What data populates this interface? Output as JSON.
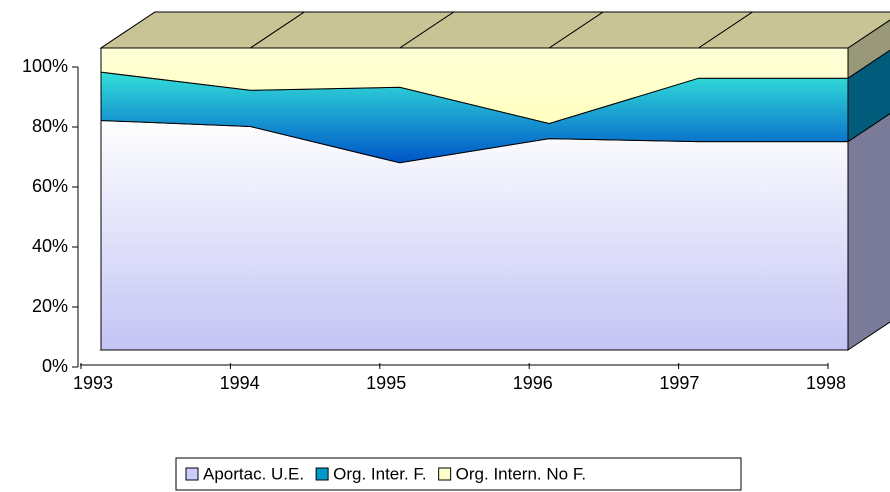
{
  "chart_data": {
    "type": "area3d",
    "stacked": "percent",
    "categories": [
      "1993",
      "1994",
      "1995",
      "1996",
      "1997",
      "1998"
    ],
    "series": [
      {
        "name": "Aportac. U.E.",
        "color": "#ccccff",
        "values": [
          76,
          74,
          62,
          70,
          69,
          69
        ]
      },
      {
        "name": "Org. Inter. F.",
        "color": "#0099cc",
        "values": [
          16,
          12,
          25,
          5,
          21,
          21
        ]
      },
      {
        "name": "Org. Intern. No F.",
        "color": "#ffffcc",
        "values": [
          8,
          14,
          13,
          25,
          10,
          10
        ]
      }
    ],
    "ylim": [
      0,
      100
    ],
    "yticks": [
      {
        "value": 0,
        "label": "0%"
      },
      {
        "value": 20,
        "label": "20%"
      },
      {
        "value": 40,
        "label": "40%"
      },
      {
        "value": 60,
        "label": "60%"
      },
      {
        "value": 80,
        "label": "80%"
      },
      {
        "value": 100,
        "label": "100%"
      }
    ],
    "grid": true,
    "legend": "bottom"
  }
}
